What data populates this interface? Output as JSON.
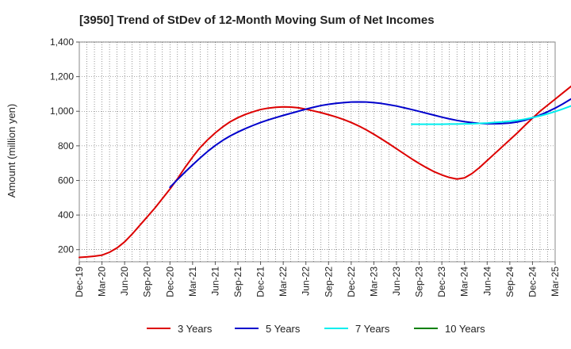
{
  "chart_data": {
    "type": "line",
    "title": "[3950]  Trend of StDev of 12-Month Moving Sum of Net Incomes",
    "ylabel": "Amount (million yen)",
    "xlabel": "",
    "ylim": [
      130,
      1400
    ],
    "yticks": [
      200,
      400,
      600,
      800,
      1000,
      1200,
      1400
    ],
    "ytick_labels": [
      "200",
      "400",
      "600",
      "800",
      "1,000",
      "1,200",
      "1,400"
    ],
    "x_categories": [
      "Dec-19",
      "Mar-20",
      "Jun-20",
      "Sep-20",
      "Dec-20",
      "Mar-21",
      "Jun-21",
      "Sep-21",
      "Dec-21",
      "Mar-22",
      "Jun-22",
      "Sep-22",
      "Dec-22",
      "Mar-23",
      "Jun-23",
      "Sep-23",
      "Dec-23",
      "Mar-24",
      "Jun-24",
      "Sep-24",
      "Dec-24",
      "Mar-25"
    ],
    "grid": true,
    "legend_position": "bottom",
    "series": [
      {
        "name": "3 Years",
        "color": "#dd0000",
        "points": [
          [
            0,
            155
          ],
          [
            1,
            158
          ],
          [
            2,
            162
          ],
          [
            3,
            168
          ],
          [
            4,
            185
          ],
          [
            5,
            210
          ],
          [
            6,
            245
          ],
          [
            7,
            290
          ],
          [
            8,
            340
          ],
          [
            9,
            390
          ],
          [
            10,
            440
          ],
          [
            11,
            495
          ],
          [
            12,
            550
          ],
          [
            13,
            610
          ],
          [
            14,
            675
          ],
          [
            15,
            735
          ],
          [
            16,
            790
          ],
          [
            17,
            835
          ],
          [
            18,
            875
          ],
          [
            19,
            910
          ],
          [
            20,
            940
          ],
          [
            21,
            963
          ],
          [
            22,
            982
          ],
          [
            23,
            997
          ],
          [
            24,
            1010
          ],
          [
            25,
            1018
          ],
          [
            26,
            1023
          ],
          [
            27,
            1025
          ],
          [
            28,
            1024
          ],
          [
            29,
            1020
          ],
          [
            30,
            1012
          ],
          [
            31,
            1002
          ],
          [
            32,
            992
          ],
          [
            33,
            980
          ],
          [
            34,
            967
          ],
          [
            35,
            952
          ],
          [
            36,
            935
          ],
          [
            37,
            915
          ],
          [
            38,
            892
          ],
          [
            39,
            867
          ],
          [
            40,
            840
          ],
          [
            41,
            812
          ],
          [
            42,
            783
          ],
          [
            43,
            754
          ],
          [
            44,
            725
          ],
          [
            45,
            698
          ],
          [
            46,
            673
          ],
          [
            47,
            650
          ],
          [
            48,
            632
          ],
          [
            49,
            617
          ],
          [
            50,
            608
          ],
          [
            51,
            615
          ],
          [
            52,
            640
          ],
          [
            53,
            675
          ],
          [
            54,
            715
          ],
          [
            55,
            755
          ],
          [
            56,
            795
          ],
          [
            57,
            835
          ],
          [
            58,
            875
          ],
          [
            59,
            918
          ],
          [
            60,
            960
          ],
          [
            61,
            1000
          ],
          [
            62,
            1035
          ],
          [
            63,
            1070
          ],
          [
            64,
            1105
          ],
          [
            65,
            1140
          ],
          [
            66,
            1175
          ],
          [
            67,
            1210
          ],
          [
            68,
            1238
          ],
          [
            69,
            1260
          ],
          [
            70,
            1275
          ],
          [
            71,
            1280
          ],
          [
            72,
            1275
          ],
          [
            73,
            1265
          ],
          [
            74,
            1255
          ]
        ]
      },
      {
        "name": "5 Years",
        "color": "#0000cc",
        "points": [
          [
            12,
            560
          ],
          [
            13,
            605
          ],
          [
            14,
            648
          ],
          [
            15,
            690
          ],
          [
            16,
            730
          ],
          [
            17,
            768
          ],
          [
            18,
            802
          ],
          [
            19,
            832
          ],
          [
            20,
            858
          ],
          [
            21,
            880
          ],
          [
            22,
            900
          ],
          [
            23,
            918
          ],
          [
            24,
            935
          ],
          [
            25,
            950
          ],
          [
            26,
            963
          ],
          [
            27,
            976
          ],
          [
            28,
            988
          ],
          [
            29,
            1000
          ],
          [
            30,
            1012
          ],
          [
            31,
            1023
          ],
          [
            32,
            1033
          ],
          [
            33,
            1040
          ],
          [
            34,
            1046
          ],
          [
            35,
            1050
          ],
          [
            36,
            1053
          ],
          [
            37,
            1054
          ],
          [
            38,
            1053
          ],
          [
            39,
            1050
          ],
          [
            40,
            1045
          ],
          [
            41,
            1038
          ],
          [
            42,
            1030
          ],
          [
            43,
            1020
          ],
          [
            44,
            1010
          ],
          [
            45,
            999
          ],
          [
            46,
            988
          ],
          [
            47,
            977
          ],
          [
            48,
            966
          ],
          [
            49,
            956
          ],
          [
            50,
            947
          ],
          [
            51,
            940
          ],
          [
            52,
            934
          ],
          [
            53,
            930
          ],
          [
            54,
            928
          ],
          [
            55,
            928
          ],
          [
            56,
            929
          ],
          [
            57,
            932
          ],
          [
            58,
            938
          ],
          [
            59,
            948
          ],
          [
            60,
            962
          ],
          [
            61,
            978
          ],
          [
            62,
            997
          ],
          [
            63,
            1018
          ],
          [
            64,
            1042
          ],
          [
            65,
            1068
          ],
          [
            66,
            1096
          ],
          [
            67,
            1125
          ],
          [
            68,
            1155
          ],
          [
            69,
            1185
          ],
          [
            70,
            1214
          ],
          [
            71,
            1241
          ],
          [
            72,
            1267
          ],
          [
            73,
            1292
          ],
          [
            74,
            1318
          ],
          [
            75,
            1340
          ],
          [
            76,
            1365
          ]
        ]
      },
      {
        "name": "7 Years",
        "color": "#00eeee",
        "points": [
          [
            44,
            925
          ],
          [
            45,
            925
          ],
          [
            46,
            925
          ],
          [
            47,
            925
          ],
          [
            48,
            925
          ],
          [
            49,
            926
          ],
          [
            50,
            926
          ],
          [
            51,
            927
          ],
          [
            52,
            928
          ],
          [
            53,
            930
          ],
          [
            54,
            932
          ],
          [
            55,
            935
          ],
          [
            56,
            938
          ],
          [
            57,
            942
          ],
          [
            58,
            947
          ],
          [
            59,
            954
          ],
          [
            60,
            963
          ],
          [
            61,
            973
          ],
          [
            62,
            985
          ],
          [
            63,
            998
          ],
          [
            64,
            1013
          ],
          [
            65,
            1029
          ],
          [
            66,
            1046
          ],
          [
            67,
            1064
          ],
          [
            68,
            1082
          ],
          [
            69,
            1100
          ],
          [
            70,
            1118
          ],
          [
            71,
            1135
          ],
          [
            72,
            1150
          ],
          [
            73,
            1163
          ],
          [
            74,
            1175
          ],
          [
            75,
            1188
          ],
          [
            76,
            1205
          ]
        ]
      },
      {
        "name": "10 Years",
        "color": "#008000",
        "points": []
      }
    ]
  }
}
